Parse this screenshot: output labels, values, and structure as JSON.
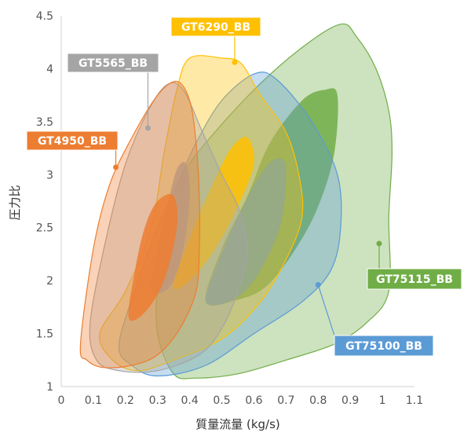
{
  "chart_data": {
    "type": "area",
    "xlabel": "質量流量 (kg/s)",
    "ylabel": "圧力比",
    "xlim": [
      0,
      1.1
    ],
    "ylim": [
      1,
      4.5
    ],
    "x_ticks": [
      "0",
      "0.1",
      "0.2",
      "0.3",
      "0.4",
      "0.5",
      "0.6",
      "0.7",
      "0.8",
      "0.9",
      "1",
      "1.1"
    ],
    "y_ticks": [
      "1",
      "1.5",
      "2",
      "2.5",
      "3",
      "3.5",
      "4",
      "4.5"
    ],
    "grid": false,
    "series": [
      {
        "name": "GT75115_BB",
        "color": "#70ad47",
        "label_anchor": [
          0.99,
          2.35
        ],
        "outline": [
          [
            0.35,
            1.12
          ],
          [
            0.42,
            1.08
          ],
          [
            0.55,
            1.12
          ],
          [
            0.7,
            1.25
          ],
          [
            0.85,
            1.4
          ],
          [
            0.95,
            1.6
          ],
          [
            1.02,
            1.9
          ],
          [
            1.02,
            2.6
          ],
          [
            1.03,
            3.2
          ],
          [
            1.02,
            3.6
          ],
          [
            0.98,
            4.0
          ],
          [
            0.92,
            4.3
          ],
          [
            0.87,
            4.42
          ],
          [
            0.75,
            4.2
          ],
          [
            0.6,
            3.8
          ],
          [
            0.45,
            3.3
          ],
          [
            0.38,
            3.0
          ],
          [
            0.32,
            2.5
          ],
          [
            0.3,
            2.0
          ],
          [
            0.3,
            1.5
          ]
        ],
        "core": [
          [
            0.45,
            1.8
          ],
          [
            0.5,
            2.3
          ],
          [
            0.58,
            2.8
          ],
          [
            0.65,
            3.3
          ],
          [
            0.75,
            3.7
          ],
          [
            0.82,
            3.8
          ],
          [
            0.86,
            3.75
          ],
          [
            0.85,
            3.2
          ],
          [
            0.8,
            2.7
          ],
          [
            0.73,
            2.3
          ],
          [
            0.64,
            1.95
          ],
          [
            0.55,
            1.82
          ]
        ]
      },
      {
        "name": "GT75100_BB",
        "color": "#5b9bd5",
        "label_anchor": [
          0.8,
          1.96
        ],
        "outline": [
          [
            0.18,
            1.4
          ],
          [
            0.22,
            1.2
          ],
          [
            0.3,
            1.1
          ],
          [
            0.45,
            1.2
          ],
          [
            0.6,
            1.5
          ],
          [
            0.75,
            1.8
          ],
          [
            0.84,
            2.1
          ],
          [
            0.87,
            2.5
          ],
          [
            0.86,
            3.0
          ],
          [
            0.78,
            3.5
          ],
          [
            0.67,
            3.9
          ],
          [
            0.6,
            3.95
          ],
          [
            0.5,
            3.7
          ],
          [
            0.42,
            3.3
          ],
          [
            0.36,
            2.9
          ],
          [
            0.3,
            2.5
          ],
          [
            0.24,
            2.0
          ]
        ],
        "core": [
          [
            0.45,
            1.8
          ],
          [
            0.48,
            2.1
          ],
          [
            0.55,
            2.6
          ],
          [
            0.62,
            3.0
          ],
          [
            0.67,
            3.15
          ],
          [
            0.7,
            3.05
          ],
          [
            0.68,
            2.5
          ],
          [
            0.6,
            2.0
          ],
          [
            0.52,
            1.8
          ]
        ]
      },
      {
        "name": "GT6290_BB",
        "color": "#ffc000",
        "label_anchor": [
          0.54,
          4.06
        ],
        "outline": [
          [
            0.12,
            1.5
          ],
          [
            0.16,
            1.25
          ],
          [
            0.24,
            1.15
          ],
          [
            0.35,
            1.25
          ],
          [
            0.5,
            1.45
          ],
          [
            0.62,
            1.8
          ],
          [
            0.7,
            2.2
          ],
          [
            0.75,
            2.6
          ],
          [
            0.74,
            3.0
          ],
          [
            0.7,
            3.4
          ],
          [
            0.62,
            3.75
          ],
          [
            0.56,
            4.05
          ],
          [
            0.5,
            4.1
          ],
          [
            0.4,
            4.1
          ],
          [
            0.36,
            3.8
          ],
          [
            0.32,
            3.2
          ],
          [
            0.28,
            2.5
          ],
          [
            0.2,
            1.9
          ]
        ],
        "core": [
          [
            0.35,
            1.95
          ],
          [
            0.4,
            2.4
          ],
          [
            0.47,
            2.9
          ],
          [
            0.53,
            3.25
          ],
          [
            0.58,
            3.35
          ],
          [
            0.6,
            3.1
          ],
          [
            0.55,
            2.7
          ],
          [
            0.48,
            2.3
          ],
          [
            0.4,
            2.0
          ]
        ]
      },
      {
        "name": "GT5565_BB",
        "color": "#a5a5a5",
        "label_anchor": [
          0.27,
          3.44
        ],
        "outline": [
          [
            0.09,
            1.6
          ],
          [
            0.11,
            1.25
          ],
          [
            0.18,
            1.15
          ],
          [
            0.3,
            1.15
          ],
          [
            0.43,
            1.3
          ],
          [
            0.5,
            1.55
          ],
          [
            0.55,
            1.9
          ],
          [
            0.58,
            2.3
          ],
          [
            0.55,
            2.7
          ],
          [
            0.5,
            3.0
          ],
          [
            0.44,
            3.4
          ],
          [
            0.38,
            3.8
          ],
          [
            0.33,
            3.85
          ],
          [
            0.27,
            3.6
          ],
          [
            0.2,
            3.1
          ],
          [
            0.14,
            2.4
          ]
        ],
        "core": [
          [
            0.28,
            1.9
          ],
          [
            0.3,
            2.3
          ],
          [
            0.33,
            2.7
          ],
          [
            0.36,
            3.05
          ],
          [
            0.39,
            3.1
          ],
          [
            0.4,
            2.8
          ],
          [
            0.38,
            2.3
          ],
          [
            0.34,
            1.95
          ]
        ]
      },
      {
        "name": "GT4950_BB",
        "color": "#ed7d31",
        "label_anchor": [
          0.17,
          3.07
        ],
        "outline": [
          [
            0.06,
            1.4
          ],
          [
            0.08,
            1.25
          ],
          [
            0.13,
            1.18
          ],
          [
            0.22,
            1.2
          ],
          [
            0.3,
            1.3
          ],
          [
            0.37,
            1.55
          ],
          [
            0.42,
            1.9
          ],
          [
            0.43,
            2.3
          ],
          [
            0.43,
            2.8
          ],
          [
            0.42,
            3.3
          ],
          [
            0.4,
            3.7
          ],
          [
            0.36,
            3.88
          ],
          [
            0.3,
            3.75
          ],
          [
            0.22,
            3.35
          ],
          [
            0.15,
            2.9
          ],
          [
            0.1,
            2.3
          ]
        ],
        "core": [
          [
            0.21,
            1.65
          ],
          [
            0.23,
            2.1
          ],
          [
            0.26,
            2.5
          ],
          [
            0.3,
            2.75
          ],
          [
            0.35,
            2.8
          ],
          [
            0.36,
            2.5
          ],
          [
            0.32,
            2.0
          ],
          [
            0.26,
            1.7
          ]
        ]
      }
    ],
    "callouts": [
      {
        "text": "GT6290_BB",
        "color": "#ffc000",
        "series": "GT6290_BB"
      },
      {
        "text": "GT5565_BB",
        "color": "#a5a5a5",
        "series": "GT5565_BB"
      },
      {
        "text": "GT4950_BB",
        "color": "#ed7d31",
        "series": "GT4950_BB"
      },
      {
        "text": "GT75115_BB",
        "color": "#70ad47",
        "series": "GT75115_BB"
      },
      {
        "text": "GT75100_BB",
        "color": "#5b9bd5",
        "series": "GT75100_BB"
      }
    ]
  }
}
